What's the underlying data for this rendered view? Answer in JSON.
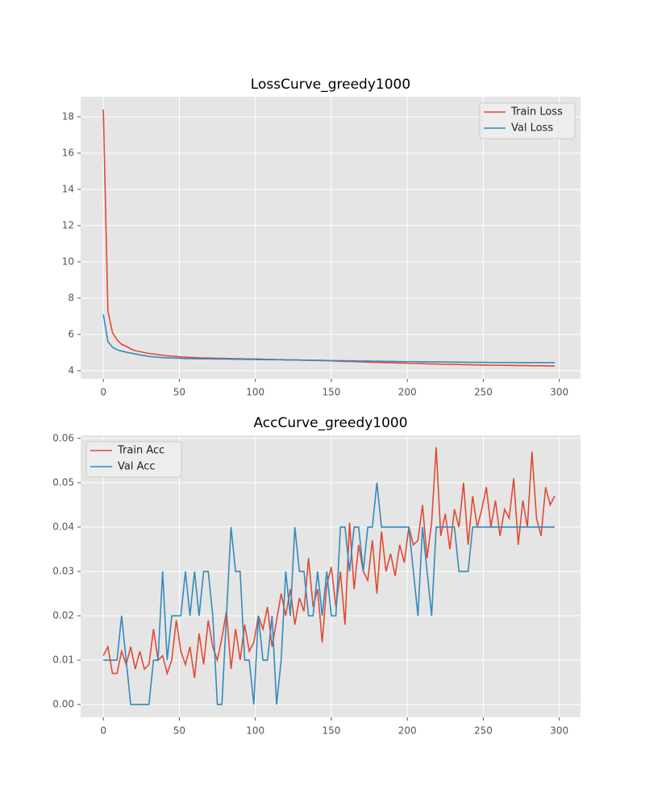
{
  "chart_data": [
    {
      "type": "line",
      "title": "LossCurve_greedy1000",
      "legend": "upper right",
      "grid": true,
      "xlim": [
        -14.95,
        313.95
      ],
      "xticks": [
        0,
        50,
        100,
        150,
        200,
        250,
        300
      ],
      "ylim": [
        3.55,
        19.11
      ],
      "yticks": [
        4,
        6,
        8,
        10,
        12,
        14,
        16,
        18
      ],
      "x": [
        0,
        3,
        6,
        9,
        12,
        15,
        18,
        21,
        24,
        27,
        30,
        33,
        36,
        39,
        42,
        45,
        48,
        51,
        54,
        57,
        60,
        63,
        66,
        69,
        72,
        75,
        78,
        81,
        84,
        87,
        90,
        93,
        96,
        99,
        102,
        105,
        108,
        111,
        114,
        117,
        120,
        123,
        126,
        129,
        132,
        135,
        138,
        141,
        144,
        147,
        150,
        153,
        156,
        159,
        162,
        165,
        168,
        171,
        174,
        177,
        180,
        183,
        186,
        189,
        192,
        195,
        198,
        201,
        204,
        207,
        210,
        213,
        216,
        219,
        222,
        225,
        228,
        231,
        234,
        237,
        240,
        243,
        246,
        249,
        252,
        255,
        258,
        261,
        264,
        267,
        270,
        273,
        276,
        279,
        282,
        285,
        288,
        291,
        294,
        297
      ],
      "series": [
        {
          "name": "Train Loss",
          "color": "#E24A33",
          "values": [
            18.4,
            7.3,
            6.1,
            5.7,
            5.45,
            5.35,
            5.2,
            5.1,
            5.05,
            5.0,
            4.95,
            4.92,
            4.88,
            4.85,
            4.82,
            4.8,
            4.78,
            4.76,
            4.75,
            4.73,
            4.72,
            4.71,
            4.7,
            4.7,
            4.69,
            4.68,
            4.68,
            4.67,
            4.67,
            4.66,
            4.66,
            4.65,
            4.65,
            4.64,
            4.64,
            4.63,
            4.62,
            4.62,
            4.61,
            4.61,
            4.6,
            4.6,
            4.59,
            4.59,
            4.58,
            4.57,
            4.57,
            4.56,
            4.55,
            4.55,
            4.54,
            4.53,
            4.52,
            4.51,
            4.5,
            4.5,
            4.49,
            4.48,
            4.47,
            4.47,
            4.46,
            4.45,
            4.44,
            4.44,
            4.43,
            4.42,
            4.42,
            4.41,
            4.4,
            4.4,
            4.39,
            4.38,
            4.37,
            4.37,
            4.36,
            4.35,
            4.35,
            4.34,
            4.34,
            4.33,
            4.33,
            4.32,
            4.32,
            4.31,
            4.31,
            4.3,
            4.3,
            4.3,
            4.29,
            4.29,
            4.29,
            4.28,
            4.28,
            4.28,
            4.27,
            4.27,
            4.27,
            4.27,
            4.26,
            4.26
          ]
        },
        {
          "name": "Val Loss",
          "color": "#348ABD",
          "values": [
            7.1,
            5.6,
            5.3,
            5.15,
            5.08,
            5.02,
            4.97,
            4.92,
            4.87,
            4.83,
            4.79,
            4.76,
            4.74,
            4.72,
            4.71,
            4.7,
            4.69,
            4.68,
            4.67,
            4.67,
            4.66,
            4.66,
            4.65,
            4.65,
            4.65,
            4.64,
            4.64,
            4.64,
            4.63,
            4.63,
            4.63,
            4.62,
            4.62,
            4.62,
            4.61,
            4.61,
            4.61,
            4.6,
            4.6,
            4.6,
            4.59,
            4.59,
            4.59,
            4.58,
            4.58,
            4.58,
            4.57,
            4.57,
            4.57,
            4.56,
            4.56,
            4.55,
            4.55,
            4.55,
            4.54,
            4.54,
            4.53,
            4.53,
            4.53,
            4.52,
            4.52,
            4.52,
            4.51,
            4.51,
            4.51,
            4.5,
            4.5,
            4.5,
            4.5,
            4.49,
            4.49,
            4.49,
            4.48,
            4.48,
            4.48,
            4.48,
            4.47,
            4.47,
            4.47,
            4.47,
            4.46,
            4.46,
            4.46,
            4.46,
            4.46,
            4.45,
            4.45,
            4.45,
            4.45,
            4.45,
            4.45,
            4.44,
            4.44,
            4.44,
            4.44,
            4.44,
            4.44,
            4.44,
            4.44,
            4.44
          ]
        }
      ]
    },
    {
      "type": "line",
      "title": "AccCurve_greedy1000",
      "legend": "upper left",
      "grid": true,
      "xlim": [
        -14.95,
        313.95
      ],
      "xticks": [
        0,
        50,
        100,
        150,
        200,
        250,
        300
      ],
      "ylim": [
        -0.00289,
        0.0607
      ],
      "yticks": [
        {
          "value": 0,
          "label": "0.00"
        },
        {
          "value": 0.01,
          "label": "0.01"
        },
        {
          "value": 0.02,
          "label": "0.02"
        },
        {
          "value": 0.03,
          "label": "0.03"
        },
        {
          "value": 0.04,
          "label": "0.04"
        },
        {
          "value": 0.05,
          "label": "0.05"
        },
        {
          "value": 0.06,
          "label": "0.06"
        }
      ],
      "x": [
        0,
        3,
        6,
        9,
        12,
        15,
        18,
        21,
        24,
        27,
        30,
        33,
        36,
        39,
        42,
        45,
        48,
        51,
        54,
        57,
        60,
        63,
        66,
        69,
        72,
        75,
        78,
        81,
        84,
        87,
        90,
        93,
        96,
        99,
        102,
        105,
        108,
        111,
        114,
        117,
        120,
        123,
        126,
        129,
        132,
        135,
        138,
        141,
        144,
        147,
        150,
        153,
        156,
        159,
        162,
        165,
        168,
        171,
        174,
        177,
        180,
        183,
        186,
        189,
        192,
        195,
        198,
        201,
        204,
        207,
        210,
        213,
        216,
        219,
        222,
        225,
        228,
        231,
        234,
        237,
        240,
        243,
        246,
        249,
        252,
        255,
        258,
        261,
        264,
        267,
        270,
        273,
        276,
        279,
        282,
        285,
        288,
        291,
        294,
        297
      ],
      "series": [
        {
          "name": "Train Acc",
          "color": "#E24A33",
          "values": [
            0.011,
            0.013,
            0.007,
            0.007,
            0.012,
            0.009,
            0.013,
            0.008,
            0.012,
            0.008,
            0.009,
            0.017,
            0.01,
            0.011,
            0.007,
            0.01,
            0.019,
            0.012,
            0.009,
            0.013,
            0.006,
            0.016,
            0.009,
            0.019,
            0.013,
            0.01,
            0.015,
            0.021,
            0.008,
            0.017,
            0.01,
            0.018,
            0.012,
            0.014,
            0.02,
            0.017,
            0.022,
            0.013,
            0.019,
            0.025,
            0.02,
            0.026,
            0.018,
            0.024,
            0.021,
            0.033,
            0.022,
            0.026,
            0.014,
            0.027,
            0.031,
            0.022,
            0.03,
            0.018,
            0.041,
            0.026,
            0.036,
            0.03,
            0.028,
            0.037,
            0.025,
            0.039,
            0.03,
            0.034,
            0.029,
            0.036,
            0.032,
            0.04,
            0.036,
            0.037,
            0.045,
            0.033,
            0.041,
            0.058,
            0.038,
            0.043,
            0.035,
            0.044,
            0.04,
            0.05,
            0.036,
            0.047,
            0.04,
            0.044,
            0.049,
            0.04,
            0.046,
            0.038,
            0.044,
            0.042,
            0.051,
            0.036,
            0.046,
            0.04,
            0.057,
            0.042,
            0.038,
            0.049,
            0.045,
            0.047
          ]
        },
        {
          "name": "Val Acc",
          "color": "#348ABD",
          "values": [
            0.01,
            0.01,
            0.01,
            0.01,
            0.02,
            0.01,
            0,
            0,
            0,
            0,
            0,
            0.01,
            0.01,
            0.03,
            0.01,
            0.02,
            0.02,
            0.02,
            0.03,
            0.02,
            0.03,
            0.02,
            0.03,
            0.03,
            0.02,
            0,
            0,
            0.02,
            0.04,
            0.03,
            0.03,
            0.01,
            0.01,
            0,
            0.02,
            0.01,
            0.01,
            0.02,
            0,
            0.01,
            0.03,
            0.02,
            0.04,
            0.03,
            0.03,
            0.02,
            0.02,
            0.03,
            0.02,
            0.03,
            0.02,
            0.02,
            0.04,
            0.04,
            0.03,
            0.04,
            0.04,
            0.03,
            0.04,
            0.04,
            0.05,
            0.04,
            0.04,
            0.04,
            0.04,
            0.04,
            0.04,
            0.04,
            0.03,
            0.02,
            0.04,
            0.03,
            0.02,
            0.04,
            0.04,
            0.04,
            0.04,
            0.04,
            0.03,
            0.03,
            0.03,
            0.04,
            0.04,
            0.04,
            0.04,
            0.04,
            0.04,
            0.04,
            0.04,
            0.04,
            0.04,
            0.04,
            0.04,
            0.04,
            0.04,
            0.04,
            0.04,
            0.04,
            0.04,
            0.04
          ]
        }
      ]
    }
  ]
}
